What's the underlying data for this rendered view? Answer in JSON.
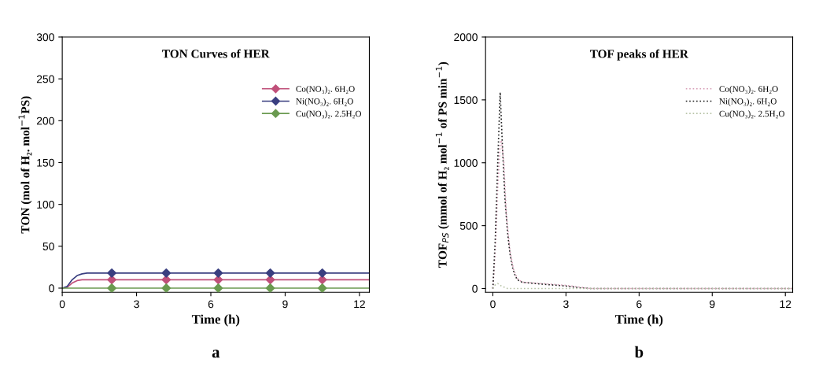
{
  "chart_data": [
    {
      "type": "line",
      "title": "TON Curves of HER",
      "xlabel": "Time (h)",
      "ylabel": "TON (mol of H₂. mol$^{−1}$PS)",
      "annotations": [
        "a"
      ],
      "xlim": [
        0,
        12.4
      ],
      "ylim": [
        -5,
        300
      ],
      "xticks": [
        0,
        3,
        6,
        9,
        12
      ],
      "yticks": [
        0,
        50,
        100,
        150,
        200,
        250,
        300
      ],
      "grid": false,
      "legend": "top right",
      "line_style": "solid",
      "series": [
        {
          "name": "Co(NO₃)₂. 6H₂O",
          "color": "#c0507a",
          "marker": "none",
          "x": [
            0,
            0.2,
            0.4,
            0.6,
            0.8,
            1.0,
            2,
            12.4
          ],
          "values": [
            0,
            1,
            6,
            9,
            10,
            10,
            10,
            10
          ]
        },
        {
          "name": "Ni(NO₃)₂. 6H₂O",
          "color": "#3a3f80",
          "marker": "none",
          "x": [
            0,
            0.2,
            0.4,
            0.6,
            0.8,
            1.0,
            2,
            12.4
          ],
          "values": [
            0,
            2,
            10,
            15,
            17,
            18,
            18,
            18
          ]
        },
        {
          "name": "Cu(NO₃)₂. 2.5H₂O",
          "color": "#6a9a50",
          "marker": "none",
          "x": [
            0,
            12.4
          ],
          "values": [
            0,
            0
          ]
        },
        {
          "type": "scatter",
          "marker": "diamond",
          "color": "#c0507a",
          "x": [
            2,
            4.2,
            6.3,
            8.4,
            10.5
          ],
          "values": [
            10,
            10,
            10,
            10,
            10
          ]
        },
        {
          "type": "scatter",
          "marker": "diamond",
          "color": "#3a3f80",
          "x": [
            2,
            4.2,
            6.3,
            8.4,
            10.5
          ],
          "values": [
            18,
            18,
            18,
            18,
            18
          ]
        },
        {
          "type": "scatter",
          "marker": "diamond",
          "color": "#6a9a50",
          "x": [
            2,
            4.2,
            6.3,
            8.4,
            10.5
          ],
          "values": [
            0,
            0,
            0,
            0,
            0
          ]
        }
      ]
    },
    {
      "type": "line",
      "title": "TOF peaks of HER",
      "xlabel": "Time (h)",
      "ylabel": "TOF$_{PS}$ (mmol of H₂ mol$^{−1}$ of PS min$^{−1}$)",
      "annotations": [
        "b"
      ],
      "xlim": [
        -0.3,
        12.3
      ],
      "ylim": [
        -30,
        2000
      ],
      "xticks": [
        0,
        3,
        6,
        9,
        12
      ],
      "yticks": [
        0,
        500,
        1000,
        1500,
        2000
      ],
      "grid": false,
      "legend": "top right",
      "line_style": "dotted",
      "series": [
        {
          "name": "Co(NO₃)₂. 6H₂O",
          "color": "#d8a0b8",
          "x": [
            0,
            0.1,
            0.2,
            0.3,
            0.35,
            0.45,
            0.55,
            0.7,
            0.85,
            1.0,
            1.2,
            2,
            3,
            3.6,
            4,
            12.3
          ],
          "values": [
            0,
            300,
            800,
            1150,
            1180,
            1000,
            600,
            300,
            150,
            80,
            50,
            40,
            25,
            10,
            0,
            0
          ]
        },
        {
          "name": "Ni(NO₃)₂. 6H₂O",
          "color": "#222222",
          "x": [
            0,
            0.1,
            0.2,
            0.3,
            0.4,
            0.5,
            0.6,
            0.7,
            0.8,
            0.9,
            1.0,
            1.2,
            2,
            3,
            3.6,
            4,
            12.3
          ],
          "values": [
            0,
            400,
            1000,
            1560,
            1100,
            700,
            450,
            280,
            170,
            110,
            70,
            50,
            35,
            20,
            5,
            0,
            0
          ]
        },
        {
          "name": "Cu(NO₃)₂. 2.5H₂O",
          "color": "#b8c4a8",
          "x": [
            0,
            0.1,
            0.2,
            0.35,
            0.6,
            12.3
          ],
          "values": [
            0,
            30,
            40,
            20,
            0,
            0
          ]
        }
      ]
    }
  ]
}
